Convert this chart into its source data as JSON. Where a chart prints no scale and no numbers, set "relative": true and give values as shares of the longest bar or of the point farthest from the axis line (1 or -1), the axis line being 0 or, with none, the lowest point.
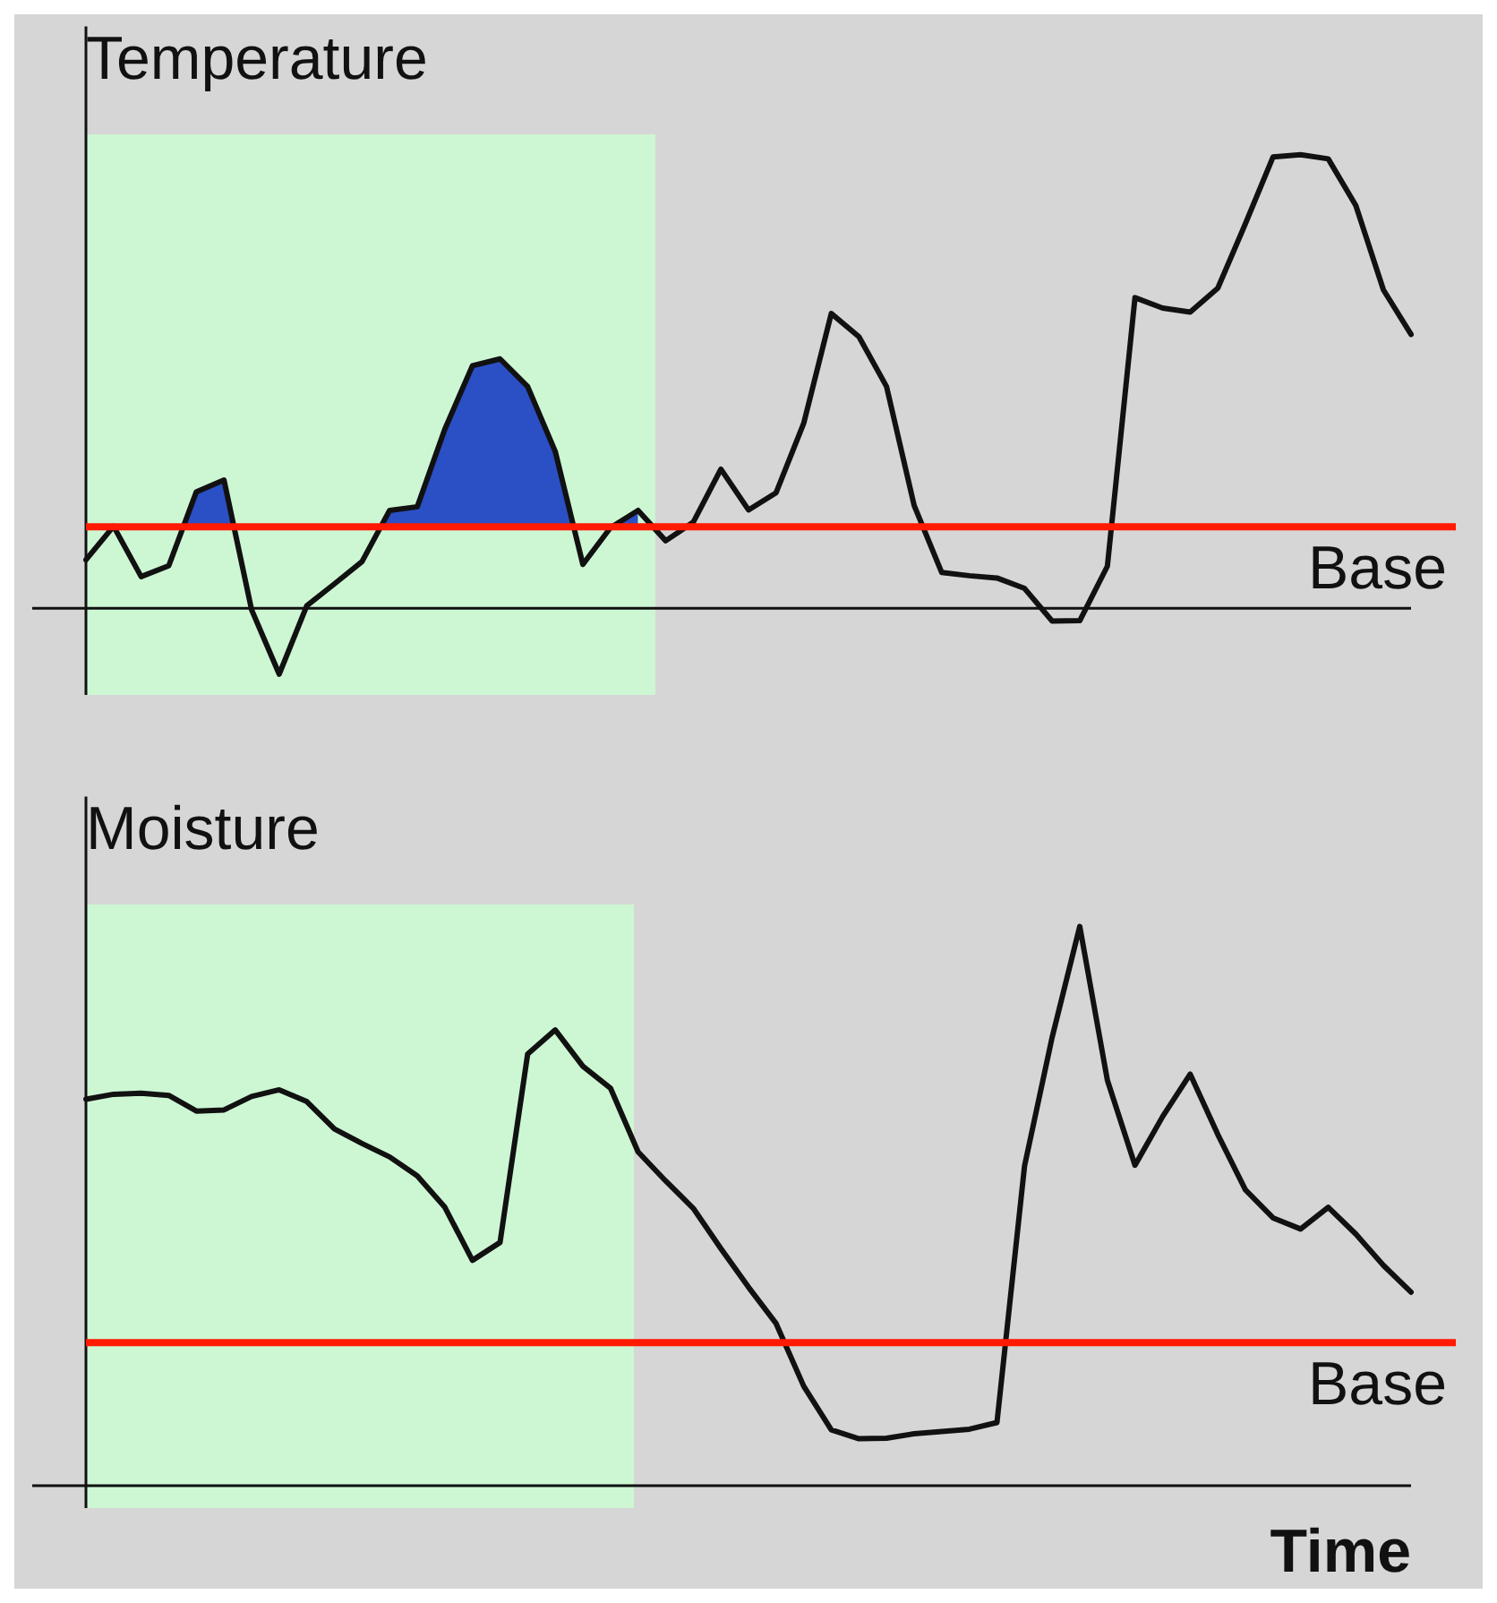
{
  "chart_data": [
    {
      "type": "line",
      "title": "Temperature",
      "relative": true,
      "tick_labels": false,
      "legend": false,
      "categories": [
        null,
        null,
        null,
        null,
        null,
        null,
        null,
        null,
        null,
        null,
        null,
        null,
        null,
        null,
        null,
        null,
        null,
        null,
        null,
        null,
        null,
        null,
        null,
        null,
        null,
        null,
        null,
        null,
        null,
        null,
        null,
        null,
        null,
        null,
        null,
        null,
        null,
        null,
        null,
        null,
        null,
        null,
        null,
        null,
        null,
        null,
        null,
        null,
        null
      ],
      "ref_lines": [
        {
          "axis": "y",
          "value": 0.18,
          "label": "Base",
          "color": "#ff1a00"
        }
      ],
      "series": [
        {
          "type": "line",
          "color": "#111111",
          "values": [
            0.107,
            0.181,
            0.07,
            0.094,
            0.257,
            0.283,
            -0.003,
            -0.145,
            0.006,
            0.054,
            0.103,
            0.216,
            0.224,
            0.395,
            0.535,
            0.55,
            0.489,
            0.346,
            0.097,
            0.178,
            0.216,
            0.149,
            0.19,
            0.307,
            0.217,
            0.255,
            0.408,
            0.65,
            0.599,
            0.489,
            0.227,
            0.079,
            0.072,
            0.067,
            0.044,
            -0.028,
            -0.027,
            0.093,
            0.685,
            0.662,
            0.653,
            0.706,
            0.848,
            0.995,
            1,
            0.991,
            0.888,
            0.702,
            0.604
          ]
        },
        {
          "type": "area",
          "color": "#2b4fc4",
          "values": [
            0.107,
            0.181,
            0.07,
            0.094,
            0.257,
            0.283,
            -0.003,
            -0.145,
            0.006,
            0.054,
            0.103,
            0.216,
            0.224,
            0.395,
            0.535,
            0.55,
            0.489,
            0.346,
            0.097,
            0.178,
            0.216,
            null,
            null,
            null,
            null,
            null,
            null,
            null,
            null,
            null,
            null,
            null,
            null,
            null,
            null,
            null,
            null,
            null,
            null,
            null,
            null,
            null,
            null,
            null,
            null,
            null,
            null,
            null,
            null
          ]
        }
      ]
    },
    {
      "type": "line",
      "title": "Moisture",
      "xlabel": "Time",
      "relative": true,
      "tick_labels": false,
      "legend": false,
      "categories": [
        null,
        null,
        null,
        null,
        null,
        null,
        null,
        null,
        null,
        null,
        null,
        null,
        null,
        null,
        null,
        null,
        null,
        null,
        null,
        null,
        null,
        null,
        null,
        null,
        null,
        null,
        null,
        null,
        null,
        null,
        null,
        null,
        null,
        null,
        null,
        null,
        null,
        null,
        null,
        null,
        null,
        null,
        null,
        null,
        null,
        null,
        null,
        null,
        null
      ],
      "ref_lines": [
        {
          "axis": "y",
          "value": 0.256,
          "label": "Base",
          "color": "#ff1a00"
        }
      ],
      "series": [
        {
          "type": "line",
          "color": "#111111",
          "values": [
            0.691,
            0.7,
            0.702,
            0.698,
            0.67,
            0.672,
            0.696,
            0.708,
            0.687,
            0.638,
            0.612,
            0.588,
            0.554,
            0.498,
            0.403,
            0.435,
            0.772,
            0.815,
            0.75,
            0.711,
            0.597,
            0.545,
            0.496,
            0.424,
            0.355,
            0.29,
            0.178,
            0.1,
            0.084,
            0.085,
            0.093,
            0.097,
            0.101,
            0.113,
            0.572,
            0.802,
            1,
            0.725,
            0.573,
            0.66,
            0.736,
            0.628,
            0.529,
            0.479,
            0.459,
            0.498,
            0.45,
            0.394,
            0.346
          ]
        }
      ]
    }
  ]
}
